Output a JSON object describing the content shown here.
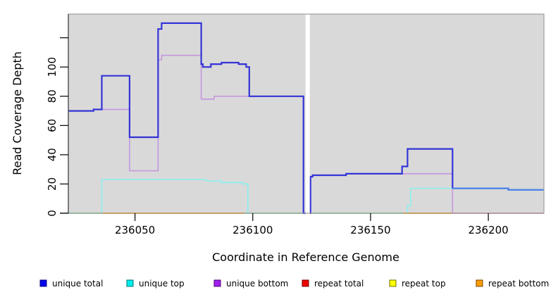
{
  "chart_data": {
    "type": "line",
    "step": true,
    "title": "",
    "xlabel": "Coordinate in Reference Genome",
    "ylabel": "Read Coverage Depth",
    "xlim": [
      236021.7,
      236223.6
    ],
    "ylim": [
      0,
      136.2
    ],
    "grid": false,
    "plot_bg": "#d9d9d9",
    "plot_border": "#9e9e9e",
    "x_ticks": [
      {
        "value": 236050,
        "label": "236050"
      },
      {
        "value": 236100,
        "label": "236100"
      },
      {
        "value": 236150,
        "label": "236150"
      },
      {
        "value": 236200,
        "label": "236200"
      }
    ],
    "y_ticks": [
      {
        "value": 0,
        "label": "0"
      },
      {
        "value": 20,
        "label": "20"
      },
      {
        "value": 40,
        "label": "40"
      },
      {
        "value": 60,
        "label": "60"
      },
      {
        "value": 80,
        "label": "80"
      },
      {
        "value": 100,
        "label": "100"
      },
      {
        "value": 120,
        "label": ""
      }
    ],
    "gap_region": {
      "x0": 236122.4,
      "x1": 236124.2,
      "color": "#ffffff"
    },
    "legend": [
      {
        "label": "unique total",
        "fill": "#0000ee",
        "border": "#000080"
      },
      {
        "label": "unique top",
        "fill": "#00eeee",
        "border": "#007070"
      },
      {
        "label": "unique bottom",
        "fill": "#a020f0",
        "border": "#500070"
      },
      {
        "label": "repeat total",
        "fill": "#ee0000",
        "border": "#700000"
      },
      {
        "label": "repeat top",
        "fill": "#ffff00",
        "border": "#707000"
      },
      {
        "label": "repeat bottom",
        "fill": "#ff9d00",
        "border": "#704000"
      }
    ],
    "series": [
      {
        "name": "repeat top",
        "color": "#8ed7a4",
        "width": 2,
        "segments": [
          {
            "points": [
              [
                236021.7,
                0
              ],
              [
                236035.9,
                0
              ]
            ]
          },
          {
            "points": [
              [
                236096.2,
                0
              ],
              [
                236122.4,
                0
              ]
            ]
          },
          {
            "points": [
              [
                236124.2,
                0
              ],
              [
                236163.9,
                0
              ]
            ]
          }
        ]
      },
      {
        "name": "repeat bottom",
        "color": "#ff9d14",
        "width": 2,
        "segments": [
          {
            "points": [
              [
                236035.9,
                0
              ],
              [
                236096.2,
                0
              ]
            ]
          },
          {
            "points": [
              [
                236163.9,
                0
              ],
              [
                236184.8,
                0
              ]
            ]
          }
        ]
      },
      {
        "name": "repeat total",
        "color": "#d878a2",
        "width": 1.8,
        "segments": [
          {
            "points": [
              [
                236184.8,
                0
              ],
              [
                236223.6,
                0
              ]
            ]
          }
        ]
      },
      {
        "name": "unique top",
        "color": "#8feeee",
        "width": 1.7,
        "segments": [
          {
            "points": [
              [
                236035.9,
                0
              ],
              [
                236035.9,
                23
              ],
              [
                236080.3,
                23
              ],
              [
                236080.3,
                22
              ],
              [
                236086.6,
                22
              ],
              [
                236086.6,
                21
              ],
              [
                236095.7,
                21
              ],
              [
                236095.7,
                20
              ],
              [
                236097.9,
                20
              ],
              [
                236097.9,
                0
              ]
            ]
          },
          {
            "points": [
              [
                236165.7,
                0
              ],
              [
                236165.7,
                5
              ],
              [
                236167.0,
                5
              ],
              [
                236167.0,
                17
              ],
              [
                236184.8,
                17
              ]
            ]
          }
        ]
      },
      {
        "name": "unique bottom",
        "color": "#c49ade",
        "width": 1.7,
        "segments": [
          {
            "points": [
              [
                236035.9,
                71
              ],
              [
                236047.7,
                71
              ],
              [
                236047.7,
                29
              ],
              [
                236059.8,
                29
              ],
              [
                236059.8,
                105
              ],
              [
                236061.3,
                105
              ],
              [
                236061.3,
                108
              ],
              [
                236078.1,
                108
              ],
              [
                236078.1,
                78
              ],
              [
                236083.6,
                78
              ],
              [
                236083.6,
                80
              ],
              [
                236098.5,
                80
              ]
            ]
          },
          {
            "points": [
              [
                236163.4,
                27
              ],
              [
                236184.8,
                27
              ],
              [
                236184.8,
                0
              ]
            ]
          }
        ]
      },
      {
        "name": "unique total",
        "color": "#3434d8",
        "width": 2.2,
        "segments": [
          {
            "points": [
              [
                236021.7,
                70
              ],
              [
                236032.4,
                70
              ],
              [
                236032.4,
                71
              ],
              [
                236035.9,
                71
              ],
              [
                236035.9,
                94
              ],
              [
                236047.7,
                94
              ],
              [
                236047.7,
                52
              ],
              [
                236059.8,
                52
              ],
              [
                236059.8,
                126
              ],
              [
                236061.3,
                126
              ],
              [
                236061.3,
                130
              ],
              [
                236078.1,
                130
              ],
              [
                236078.1,
                102
              ],
              [
                236078.8,
                102
              ],
              [
                236078.8,
                100
              ],
              [
                236082.2,
                100
              ],
              [
                236082.2,
                102
              ],
              [
                236086.7,
                102
              ],
              [
                236086.7,
                103
              ],
              [
                236094.0,
                103
              ],
              [
                236094.0,
                102
              ],
              [
                236097.2,
                102
              ],
              [
                236097.2,
                100
              ],
              [
                236098.5,
                100
              ],
              [
                236098.5,
                80
              ],
              [
                236121.5,
                80
              ],
              [
                236121.5,
                0
              ],
              [
                236122.4,
                0
              ]
            ]
          },
          {
            "points": [
              [
                236124.2,
                0
              ],
              [
                236124.5,
                0
              ],
              [
                236124.5,
                25
              ],
              [
                236125.4,
                25
              ],
              [
                236125.4,
                26
              ],
              [
                236139.6,
                26
              ],
              [
                236139.6,
                27
              ],
              [
                236163.4,
                27
              ],
              [
                236163.4,
                32
              ],
              [
                236165.7,
                32
              ],
              [
                236165.7,
                44
              ],
              [
                236184.8,
                44
              ],
              [
                236184.8,
                17
              ]
            ]
          },
          {
            "color": "#4d86e6",
            "width": 2.4,
            "points": [
              [
                236184.8,
                17
              ],
              [
                236208.5,
                17
              ],
              [
                236208.5,
                16
              ],
              [
                236223.6,
                16
              ]
            ]
          }
        ]
      }
    ]
  }
}
